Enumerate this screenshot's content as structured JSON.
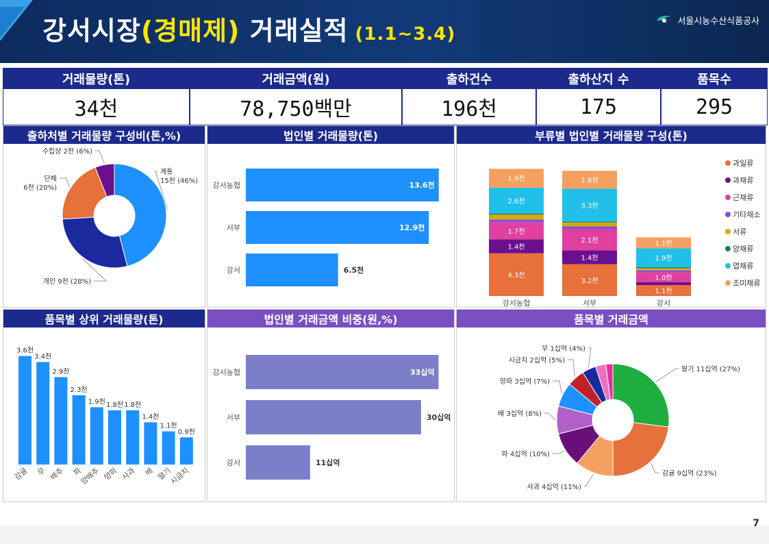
{
  "header": {
    "title_main": "강서시장",
    "title_highlight": "(경매제)",
    "title_rest": " 거래실적",
    "period": "(1.1~3.4)",
    "org": "서울시농수산식품공사"
  },
  "kpis": [
    {
      "label": "거래물량(톤)",
      "value": "34천"
    },
    {
      "label": "거래금액(원)",
      "value": "78,750백만"
    },
    {
      "label": "출하건수",
      "value": "196천"
    },
    {
      "label": "출하산지 수",
      "value": "175"
    },
    {
      "label": "품목수",
      "value": "295"
    }
  ],
  "panels": {
    "p1": "출하처별 거래물량 구성비(톤,%)",
    "p2": "법인별 거래물량(톤)",
    "p3": "부류별 법인별 거래물량 구성(톤)",
    "p4": "품목별 상위 거래물량(톤)",
    "p5": "법인별 거래금액 비중(원,%)",
    "p6": "품목별 거래금액"
  },
  "page_number": "7",
  "chart_data": [
    {
      "id": "shipper_donut",
      "type": "pie",
      "title": "출하처별 거래물량 구성비(톤,%)",
      "slices": [
        {
          "label": "계통",
          "value": 15,
          "pct": 46,
          "label_text": "계통\n15천 (46%)",
          "color": "#1e90ff"
        },
        {
          "label": "개인",
          "value": 9,
          "pct": 28,
          "label_text": "개인 9천 (28%)",
          "color": "#1a2a9e"
        },
        {
          "label": "단체",
          "value": 6,
          "pct": 20,
          "label_text": "단체\n6천 (20%)",
          "color": "#e8703a"
        },
        {
          "label": "수집상",
          "value": 2,
          "pct": 6,
          "label_text": "수집상 2천 (6%)",
          "color": "#6a0f8e"
        }
      ]
    },
    {
      "id": "corp_volume",
      "type": "bar",
      "title": "법인별 거래물량(톤)",
      "categories": [
        "강서농협",
        "서부",
        "강서"
      ],
      "values": [
        13.6,
        12.9,
        6.5
      ],
      "labels": [
        "13.6천",
        "12.9천",
        "6.5천"
      ],
      "color": "#1e90ff",
      "xlim": [
        0,
        14
      ]
    },
    {
      "id": "category_corp_stack",
      "type": "bar",
      "title": "부류별 법인별 거래물량 구성(톤)",
      "categories": [
        "강서농협",
        "서부",
        "강서"
      ],
      "series": [
        {
          "name": "과일류",
          "color": "#e8703a",
          "values": [
            4.3,
            3.2,
            1.1
          ],
          "labels": [
            "4.3천",
            "3.2천",
            "1.1천"
          ]
        },
        {
          "name": "과채류",
          "color": "#6a0f8e",
          "values": [
            1.4,
            1.4,
            0.3
          ],
          "labels": [
            "1.4천",
            "1.4천",
            ""
          ]
        },
        {
          "name": "근채류",
          "color": "#e040a0",
          "values": [
            1.7,
            2.1,
            1.0
          ],
          "labels": [
            "1.7천",
            "2.1천",
            "1.0천"
          ]
        },
        {
          "name": "기타채소",
          "color": "#8a4fd0",
          "values": [
            0.3,
            0.3,
            0.2
          ],
          "labels": [
            "",
            "",
            ""
          ]
        },
        {
          "name": "서류",
          "color": "#d4aa00",
          "values": [
            0.5,
            0.4,
            0.2
          ],
          "labels": [
            "",
            "",
            ""
          ]
        },
        {
          "name": "양채류",
          "color": "#1a7a70",
          "values": [
            0.1,
            0.1,
            0.1
          ],
          "labels": [
            "",
            "",
            ""
          ]
        },
        {
          "name": "엽채류",
          "color": "#20c0e8",
          "values": [
            2.6,
            3.3,
            1.9
          ],
          "labels": [
            "2.6천",
            "3.3천",
            "1.9천"
          ]
        },
        {
          "name": "조미채류",
          "color": "#f5a060",
          "values": [
            1.9,
            1.8,
            1.1
          ],
          "labels": [
            "1.9천",
            "1.8천",
            "1.1천"
          ]
        }
      ]
    },
    {
      "id": "top_items_volume",
      "type": "bar",
      "title": "품목별 상위 거래물량(톤)",
      "categories": [
        "감귤",
        "무",
        "배추",
        "파",
        "양배추",
        "양파",
        "사과",
        "배",
        "딸기",
        "시금치"
      ],
      "values": [
        3.6,
        3.4,
        2.9,
        2.3,
        1.9,
        1.8,
        1.8,
        1.4,
        1.1,
        0.9
      ],
      "labels": [
        "3.6천",
        "3.4천",
        "2.9천",
        "2.3천",
        "1.9천",
        "1.8천",
        "1.8천",
        "1.4천",
        "1.1천",
        "0.9천"
      ],
      "color": "#1e90ff",
      "ylim": [
        0,
        4
      ]
    },
    {
      "id": "corp_amount",
      "type": "bar",
      "title": "법인별 거래금액 비중(원,%)",
      "categories": [
        "강서농협",
        "서부",
        "강서"
      ],
      "values": [
        33,
        30,
        11
      ],
      "labels": [
        "33십억",
        "30십억",
        "11십억"
      ],
      "color": "#7b7fc8",
      "xlim": [
        0,
        34
      ]
    },
    {
      "id": "item_amount_donut",
      "type": "pie",
      "title": "품목별 거래금액",
      "slices": [
        {
          "label": "딸기",
          "value": 11,
          "pct": 27,
          "label_text": "딸기 11십억 (27%)",
          "color": "#1fae3f"
        },
        {
          "label": "감귤",
          "value": 9,
          "pct": 23,
          "label_text": "감귤 9십억 (23%)",
          "color": "#e8703a"
        },
        {
          "label": "사과",
          "value": 4,
          "pct": 11,
          "label_text": "사과 4십억 (11%)",
          "color": "#f5a060"
        },
        {
          "label": "파",
          "value": 4,
          "pct": 10,
          "label_text": "파 4십억 (10%)",
          "color": "#6a0f7a"
        },
        {
          "label": "배",
          "value": 3,
          "pct": 8,
          "label_text": "배 3십억 (8%)",
          "color": "#b060c8"
        },
        {
          "label": "양파",
          "value": 3,
          "pct": 7,
          "label_text": "양파 3십억 (7%)",
          "color": "#1e90ff"
        },
        {
          "label": "시금치",
          "value": 2,
          "pct": 5,
          "label_text": "시금치 2십억 (5%)",
          "color": "#c0202a"
        },
        {
          "label": "무",
          "value": 1,
          "pct": 4,
          "label_text": "무 1십억 (4%)",
          "color": "#1a2a9e"
        },
        {
          "label": "",
          "value": 1,
          "pct": 3,
          "label_text": "",
          "color": "#f070c0"
        },
        {
          "label": "",
          "value": 1,
          "pct": 2,
          "label_text": "",
          "color": "#e0309a"
        }
      ]
    }
  ]
}
